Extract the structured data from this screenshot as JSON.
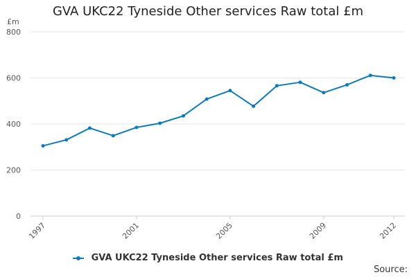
{
  "chart_data": {
    "type": "line",
    "title": "GVA UKC22 Tyneside Other services Raw total £m",
    "ylabel_unit": "£m",
    "ylim": [
      0,
      800
    ],
    "yticks": [
      0,
      200,
      400,
      600,
      800
    ],
    "grid": true,
    "x": [
      1997,
      1998,
      1999,
      2000,
      2001,
      2002,
      2003,
      2004,
      2005,
      2006,
      2007,
      2008,
      2009,
      2010,
      2011,
      2012
    ],
    "xticks": [
      "1997",
      "2001",
      "2005",
      "2009",
      "2012"
    ],
    "series": [
      {
        "name": "GVA UKC22 Tyneside Other services Raw total £m",
        "color": "#0f7ab5",
        "values": [
          305,
          331,
          382,
          349,
          385,
          403,
          435,
          508,
          545,
          477,
          566,
          581,
          536,
          570,
          611,
          600
        ]
      }
    ],
    "legend_position": "bottom",
    "source_label": "Source:"
  }
}
